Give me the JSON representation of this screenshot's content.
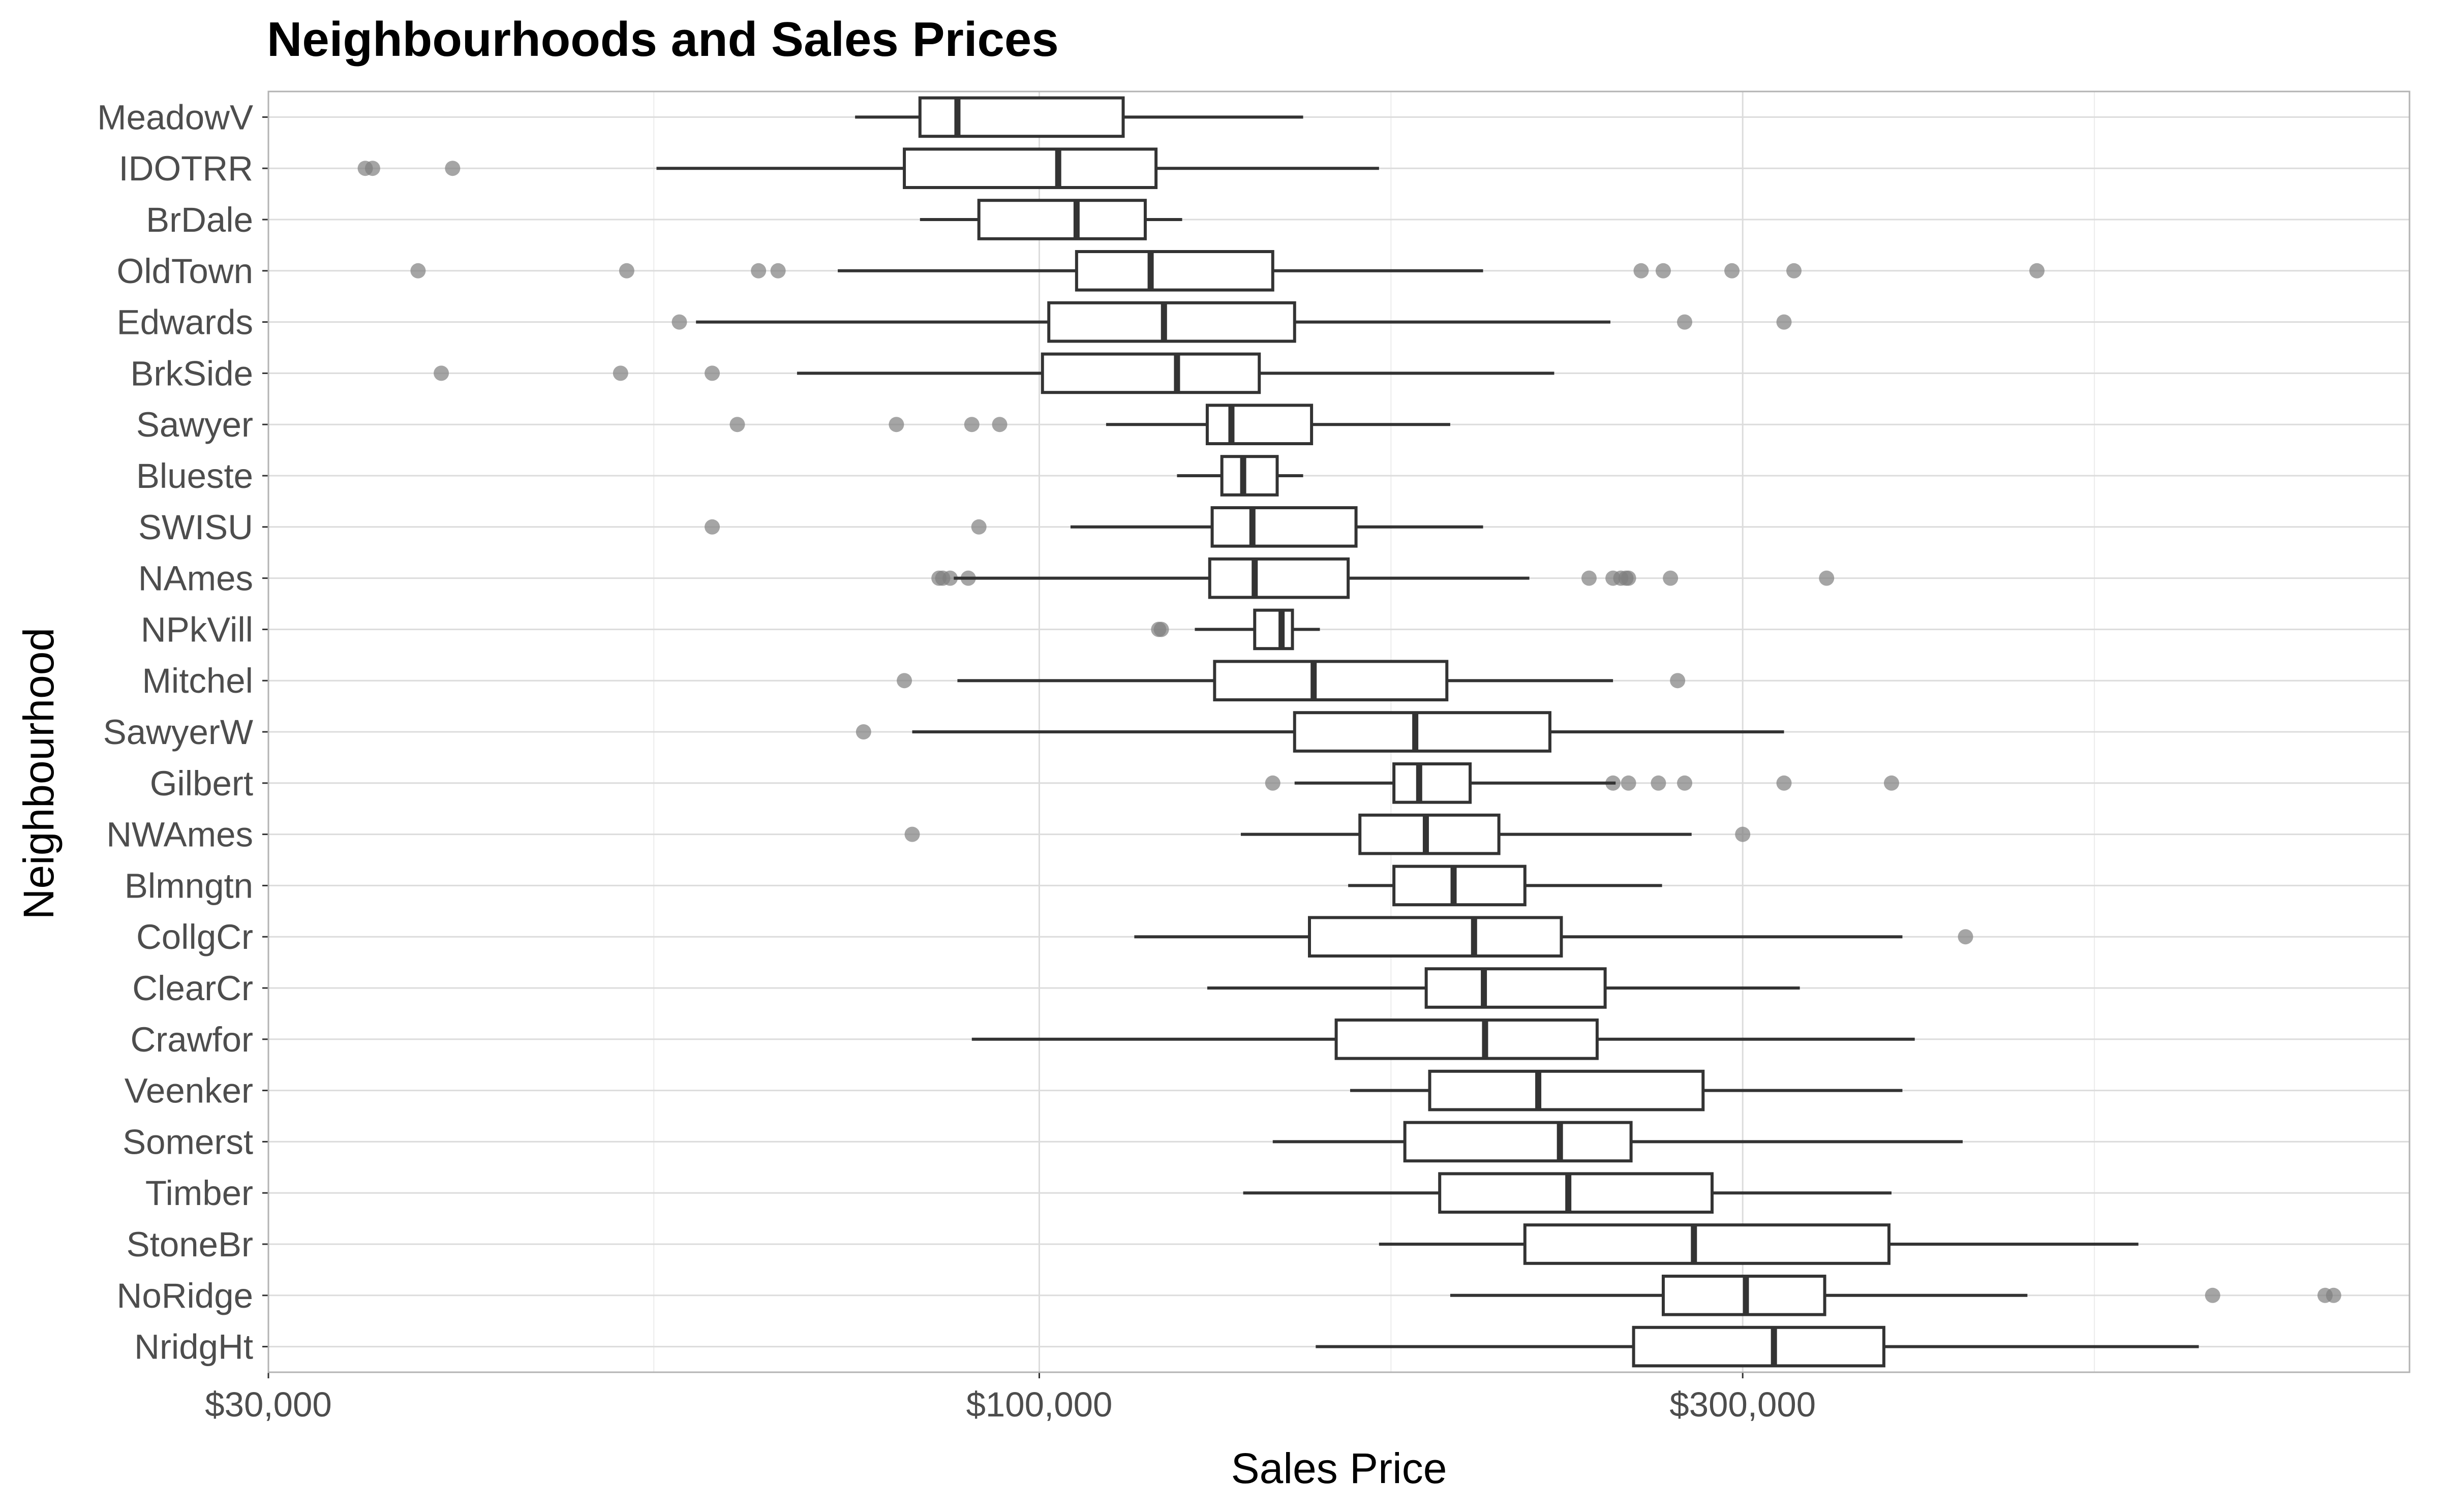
{
  "chart_data": {
    "type": "boxplot",
    "title": "Neighbourhoods and Sales Prices",
    "xlabel": "Sales Price",
    "ylabel": "Neighbourhood",
    "x_scale": "log10",
    "xlim": [
      30000,
      850000
    ],
    "x_ticks": [
      30000,
      100000,
      300000
    ],
    "x_tick_labels": [
      "$30,000",
      "$100,000",
      "$300,000"
    ],
    "grid": true,
    "colors": {
      "box_stroke": "#333333",
      "outlier": "#7f7f7f",
      "grid_major": "#dcdcdc",
      "grid_minor": "#ececec",
      "axis": "#b3b3b3"
    },
    "groups": [
      {
        "name": "MeadowV",
        "whisker_low": 75000,
        "q1": 83000,
        "median": 88000,
        "q3": 114000,
        "whisker_high": 151000,
        "outliers": []
      },
      {
        "name": "IDOTRR",
        "whisker_low": 55000,
        "q1": 81000,
        "median": 103000,
        "q3": 120000,
        "whisker_high": 170000,
        "outliers": [
          34900,
          35300,
          40000
        ]
      },
      {
        "name": "BrDale",
        "whisker_low": 83000,
        "q1": 91000,
        "median": 106000,
        "q3": 118000,
        "whisker_high": 125000,
        "outliers": []
      },
      {
        "name": "OldTown",
        "whisker_low": 73000,
        "q1": 106000,
        "median": 119000,
        "q3": 144000,
        "whisker_high": 200000,
        "outliers": [
          37900,
          52500,
          64500,
          66500,
          256000,
          265000,
          295000,
          325000,
          475000
        ]
      },
      {
        "name": "Edwards",
        "whisker_low": 58500,
        "q1": 101500,
        "median": 121500,
        "q3": 149000,
        "whisker_high": 244000,
        "outliers": [
          57000,
          274000,
          320000
        ]
      },
      {
        "name": "BrkSide",
        "whisker_low": 68500,
        "q1": 100500,
        "median": 124000,
        "q3": 141000,
        "whisker_high": 223500,
        "outliers": [
          39300,
          52000,
          60000
        ]
      },
      {
        "name": "Sawyer",
        "whisker_low": 111000,
        "q1": 130000,
        "median": 135000,
        "q3": 153000,
        "whisker_high": 190000,
        "outliers": [
          62400,
          80000,
          90000,
          94000
        ]
      },
      {
        "name": "Blueste",
        "whisker_low": 124000,
        "q1": 133000,
        "median": 137500,
        "q3": 145000,
        "whisker_high": 151000,
        "outliers": []
      },
      {
        "name": "SWISU",
        "whisker_low": 105000,
        "q1": 131000,
        "median": 139500,
        "q3": 164000,
        "whisker_high": 200000,
        "outliers": [
          60000,
          91000
        ]
      },
      {
        "name": "NAmes",
        "whisker_low": 87500,
        "q1": 130500,
        "median": 140000,
        "q3": 162000,
        "whisker_high": 215000,
        "outliers": [
          85500,
          86000,
          87000,
          89500,
          236000,
          245000,
          248000,
          250000,
          251000,
          268000,
          342000
        ]
      },
      {
        "name": "NPkVill",
        "whisker_low": 127500,
        "q1": 140000,
        "median": 146000,
        "q3": 148500,
        "whisker_high": 155000,
        "outliers": [
          120500,
          121000
        ]
      },
      {
        "name": "Mitchel",
        "whisker_low": 88000,
        "q1": 131500,
        "median": 153500,
        "q3": 189000,
        "whisker_high": 245000,
        "outliers": [
          81000,
          271000
        ]
      },
      {
        "name": "SawyerW",
        "whisker_low": 82000,
        "q1": 149000,
        "median": 179900,
        "q3": 222000,
        "whisker_high": 320000,
        "outliers": [
          76000
        ]
      },
      {
        "name": "Gilbert",
        "whisker_low": 149000,
        "q1": 174000,
        "median": 181000,
        "q3": 196000,
        "whisker_high": 246000,
        "outliers": [
          144000,
          245000,
          251000,
          263000,
          274000,
          320000,
          378500
        ]
      },
      {
        "name": "NWAmes",
        "whisker_low": 137000,
        "q1": 165000,
        "median": 182900,
        "q3": 205000,
        "whisker_high": 277000,
        "outliers": [
          82000,
          300000
        ]
      },
      {
        "name": "Blmngtn",
        "whisker_low": 162000,
        "q1": 174000,
        "median": 191000,
        "q3": 213500,
        "whisker_high": 264500,
        "outliers": []
      },
      {
        "name": "CollgCr",
        "whisker_low": 116000,
        "q1": 152500,
        "median": 197200,
        "q3": 226000,
        "whisker_high": 385000,
        "outliers": [
          424870
        ]
      },
      {
        "name": "ClearCr",
        "whisker_low": 130000,
        "q1": 183000,
        "median": 200250,
        "q3": 242000,
        "whisker_high": 328000,
        "outliers": []
      },
      {
        "name": "Crawfor",
        "whisker_low": 90000,
        "q1": 159000,
        "median": 200624,
        "q3": 239000,
        "whisker_high": 392500,
        "outliers": []
      },
      {
        "name": "Veenker",
        "whisker_low": 162500,
        "q1": 184000,
        "median": 218000,
        "q3": 282000,
        "whisker_high": 385000,
        "outliers": []
      },
      {
        "name": "Somerst",
        "whisker_low": 144000,
        "q1": 177000,
        "median": 225500,
        "q3": 252000,
        "whisker_high": 423000,
        "outliers": []
      },
      {
        "name": "Timber",
        "whisker_low": 137500,
        "q1": 186900,
        "median": 228475,
        "q3": 286000,
        "whisker_high": 378500,
        "outliers": []
      },
      {
        "name": "StoneBr",
        "whisker_low": 170000,
        "q1": 213500,
        "median": 278000,
        "q3": 377000,
        "whisker_high": 556581,
        "outliers": []
      },
      {
        "name": "NoRidge",
        "whisker_low": 190000,
        "q1": 265000,
        "median": 301500,
        "q3": 341000,
        "whisker_high": 468000,
        "outliers": [
          625000,
          745000,
          755000
        ]
      },
      {
        "name": "NridgHt",
        "whisker_low": 154000,
        "q1": 253000,
        "median": 315000,
        "q3": 374000,
        "whisker_high": 611657,
        "outliers": []
      }
    ]
  }
}
